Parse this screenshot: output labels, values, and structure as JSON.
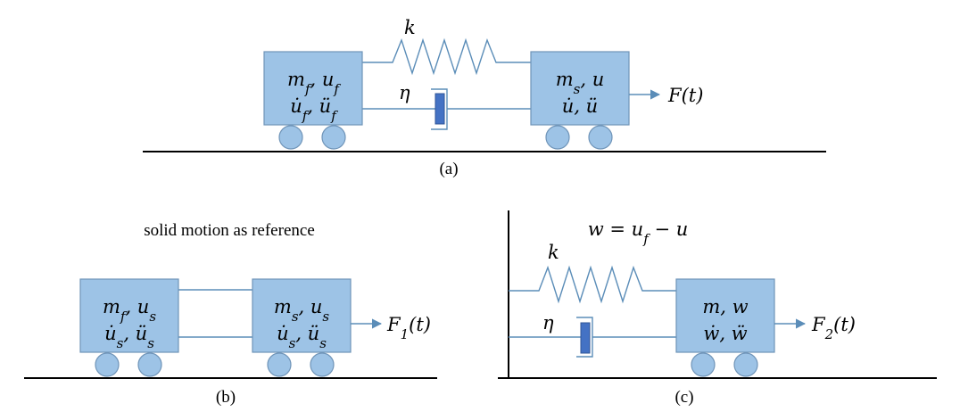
{
  "panel_a": {
    "caption": "(a)",
    "left_box": {
      "line1": "m_f, u_f",
      "line2": "u̇_f, ü_f"
    },
    "right_box": {
      "line1": "m_s, u",
      "line2": "u̇, ü"
    },
    "spring_label": "k",
    "damper_label": "η",
    "force_label": "F(t)"
  },
  "panel_b": {
    "caption": "(b)",
    "title": "solid motion as reference",
    "left_box": {
      "line1": "m_f, u_s",
      "line2": "u̇_s, ü_s"
    },
    "right_box": {
      "line1": "m_s, u_s",
      "line2": "u̇_s, ü_s"
    },
    "force_label": "F_1(t)"
  },
  "panel_c": {
    "caption": "(c)",
    "equation": "w = u_f − u",
    "box": {
      "line1": "m, w",
      "line2": "ẇ, ẅ"
    },
    "spring_label": "k",
    "damper_label": "η",
    "force_label": "F_2(t)"
  },
  "colors": {
    "box": "#9dc3e6",
    "line": "#5b8db8",
    "piston": "#4472c4"
  }
}
